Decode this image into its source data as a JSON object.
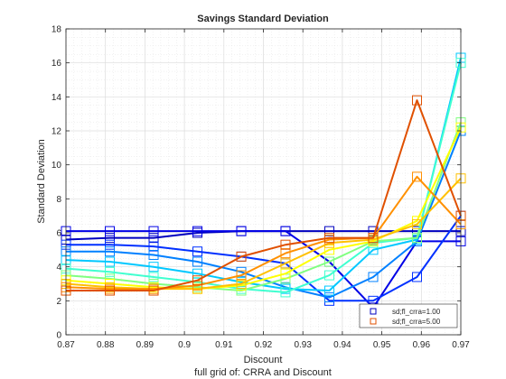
{
  "chart_data": {
    "type": "line",
    "title": "Savings Standard Deviation",
    "xlabel": "Discount",
    "ylabel": "Standard Deviation",
    "caption": "full grid of: CRRA and Discount",
    "xlim": [
      0.87,
      0.97
    ],
    "ylim": [
      0,
      18
    ],
    "xticks": [
      "0.87",
      "0.88",
      "0.89",
      "0.9",
      "0.91",
      "0.92",
      "0.93",
      "0.94",
      "0.95",
      "0.96",
      "0.97"
    ],
    "yticks": [
      "0",
      "2",
      "4",
      "6",
      "8",
      "10",
      "12",
      "14",
      "16",
      "18"
    ],
    "grid": true,
    "legend_position": "bottom-right",
    "x": [
      0.87,
      0.8811,
      0.8922,
      0.9033,
      0.9144,
      0.9256,
      0.9367,
      0.9478,
      0.9589,
      0.97
    ],
    "series": [
      {
        "name": "sd;fl_crra=1.00",
        "color": "#0000bf",
        "values": [
          5.6,
          5.7,
          5.7,
          6.0,
          6.1,
          6.1,
          6.1,
          6.1,
          6.1,
          6.1
        ]
      },
      {
        "color": "#0000e6",
        "values": [
          6.1,
          6.1,
          6.1,
          6.1,
          6.1,
          6.1,
          4.3,
          1.6,
          5.5,
          5.5
        ]
      },
      {
        "color": "#0030ff",
        "values": [
          5.3,
          5.3,
          5.2,
          4.9,
          4.6,
          4.2,
          2.0,
          2.0,
          3.4,
          7.0
        ]
      },
      {
        "color": "#0080ff",
        "values": [
          4.9,
          4.9,
          4.7,
          4.3,
          3.7,
          2.8,
          2.2,
          3.4,
          5.5,
          12.0
        ]
      },
      {
        "color": "#00c8ff",
        "values": [
          4.4,
          4.3,
          4.0,
          3.6,
          3.1,
          2.7,
          2.6,
          5.0,
          5.6,
          16.3
        ]
      },
      {
        "color": "#40ffd0",
        "values": [
          3.9,
          3.7,
          3.4,
          3.1,
          2.7,
          2.5,
          3.5,
          5.4,
          5.7,
          16.0
        ]
      },
      {
        "color": "#80ff80",
        "values": [
          3.5,
          3.3,
          3.0,
          2.8,
          2.6,
          3.3,
          4.3,
          5.5,
          5.7,
          12.5
        ]
      },
      {
        "color": "#ffff00",
        "values": [
          3.2,
          3.0,
          2.8,
          2.7,
          2.9,
          3.6,
          5.0,
          5.5,
          6.7,
          12.2
        ]
      },
      {
        "color": "#ffc000",
        "values": [
          3.0,
          2.8,
          2.7,
          2.7,
          3.0,
          4.2,
          5.4,
          5.6,
          6.5,
          9.2
        ]
      },
      {
        "color": "#ff9000",
        "values": [
          2.8,
          2.7,
          2.7,
          2.9,
          3.5,
          4.8,
          5.6,
          5.7,
          9.3,
          6.5
        ]
      },
      {
        "name": "sd;fl_crra=5.00",
        "color": "#e05000",
        "values": [
          2.6,
          2.6,
          2.6,
          3.2,
          4.6,
          5.3,
          5.7,
          5.7,
          13.8,
          7.0
        ]
      }
    ]
  }
}
